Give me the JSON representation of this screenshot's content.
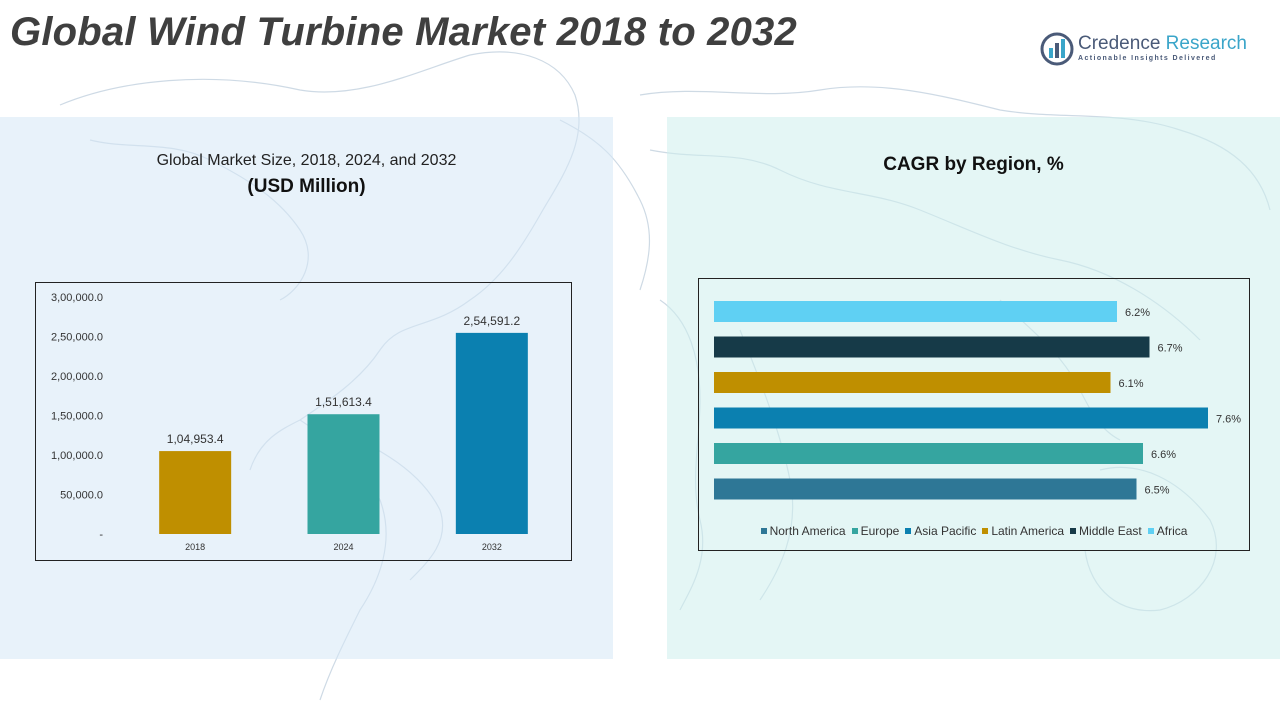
{
  "header": {
    "title": "Global Wind Turbine Market 2018 to 2032"
  },
  "logo": {
    "name_part1": "Credence",
    "name_part2": " Research",
    "tagline": "Actionable Insights Delivered"
  },
  "left_panel": {
    "subtitle": "Global Market Size, 2018, 2024, and 2032",
    "unit": "(USD Million)"
  },
  "right_panel": {
    "title": "CAGR by Region, %"
  },
  "colors": {
    "gold": "#bf8f00",
    "teal": "#35a5a0",
    "blue": "#0b80b0",
    "navy": "#163a48",
    "light_blue": "#5fd0f3",
    "steel_blue": "#2e7796"
  },
  "chart_data": [
    {
      "type": "bar",
      "categories": [
        "2018",
        "2024",
        "2032"
      ],
      "values": [
        104953.4,
        151613.4,
        254591.2
      ],
      "data_labels": [
        "1,04,953.4",
        "1,51,613.4",
        "2,54,591.2"
      ],
      "bar_colors": [
        "#bf8f00",
        "#35a5a0",
        "#0b80b0"
      ],
      "ylim": [
        0,
        300000
      ],
      "yticks": [
        0,
        50000,
        100000,
        150000,
        200000,
        250000,
        300000
      ],
      "ytick_labels": [
        "-",
        "50,000.0",
        "1,00,000.0",
        "1,50,000.0",
        "2,00,000.0",
        "2,50,000.0",
        "3,00,000.0"
      ],
      "grid": false
    },
    {
      "type": "bar",
      "orientation": "horizontal",
      "categories": [
        "Africa",
        "Middle East",
        "Latin America",
        "Asia Pacific",
        "Europe",
        "North America"
      ],
      "values": [
        6.2,
        6.7,
        6.1,
        7.6,
        6.6,
        6.5
      ],
      "data_labels": [
        "6.2%",
        "6.7%",
        "6.1%",
        "7.6%",
        "6.6%",
        "6.5%"
      ],
      "bar_colors": [
        "#5fd0f3",
        "#163a48",
        "#bf8f00",
        "#0b80b0",
        "#35a5a0",
        "#2e7796"
      ],
      "xlim": [
        0,
        7.6
      ],
      "legend": [
        {
          "name": "North America",
          "color": "#2e7796"
        },
        {
          "name": "Europe",
          "color": "#35a5a0"
        },
        {
          "name": "Asia Pacific",
          "color": "#0b80b0"
        },
        {
          "name": "Latin America",
          "color": "#bf8f00"
        },
        {
          "name": "Middle East",
          "color": "#163a48"
        },
        {
          "name": "Africa",
          "color": "#5fd0f3"
        }
      ],
      "legend_position": "bottom",
      "grid": false
    }
  ]
}
